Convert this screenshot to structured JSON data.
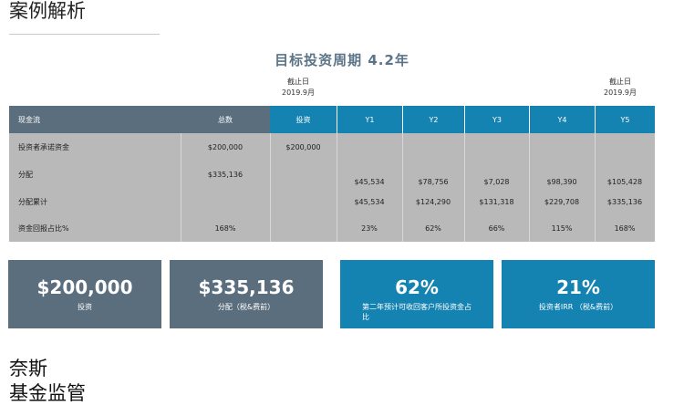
{
  "page_title": "案例解析",
  "headline": "目标投资周期 4.2年",
  "notes": [
    {
      "line1": "截止日",
      "line2": "2019.9月"
    },
    {
      "line1": "截止日",
      "line2": "2019.9月"
    }
  ],
  "table": {
    "headers": [
      "现金流",
      "总数",
      "投资",
      "Y1",
      "Y2",
      "Y3",
      "Y4",
      "Y5"
    ],
    "rows": [
      {
        "label": "投资者承诺资金",
        "cells": [
          "$200,000",
          "$200,000",
          "",
          "",
          "",
          "",
          ""
        ]
      },
      {
        "label": "分配",
        "cells": [
          "$335,136",
          "",
          "$45,534",
          "$78,756",
          "$7,028",
          "$98,390",
          "$105,428"
        ]
      },
      {
        "label": "分配累计",
        "cells": [
          "",
          "",
          "$45,534",
          "$124,290",
          "$131,318",
          "$229,708",
          "$335,136"
        ]
      },
      {
        "label": "资金回报占比%",
        "cells": [
          "168%",
          "",
          "23%",
          "62%",
          "66%",
          "115%",
          "168%"
        ]
      }
    ]
  },
  "summary": [
    {
      "value": "$200,000",
      "label": "投资"
    },
    {
      "value": "$335,136",
      "label": "分配（税&费前）"
    },
    {
      "value": "62%",
      "label": "第二年预计可收回客户所投资金占比"
    },
    {
      "value": "21%",
      "label": "投资者IRR （税&费前）"
    }
  ],
  "footer": {
    "line1": "奈斯",
    "line2": "基金监管"
  },
  "colors": {
    "slate": "#5a6e7e",
    "blue": "#1583b1",
    "table_body": "#b9b9b9",
    "headline": "#5b7487"
  }
}
